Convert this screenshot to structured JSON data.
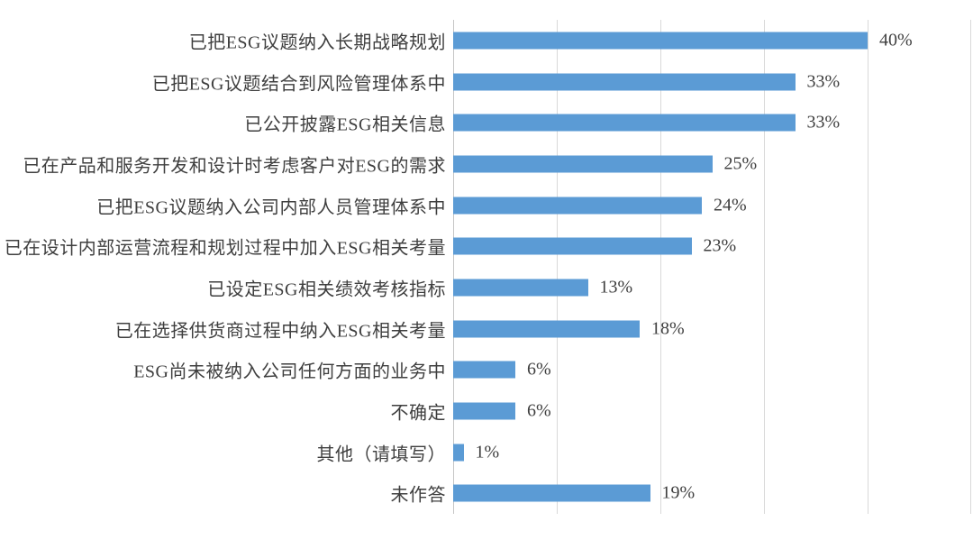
{
  "chart_data": {
    "type": "bar",
    "orientation": "horizontal",
    "title": "",
    "xlabel": "",
    "ylabel": "",
    "categories": [
      "已把ESG议题纳入长期战略规划",
      "已把ESG议题结合到风险管理体系中",
      "已公开披露ESG相关信息",
      "已在产品和服务开发和设计时考虑客户对ESG的需求",
      "已把ESG议题纳入公司内部人员管理体系中",
      "已在设计内部运营流程和规划过程中加入ESG相关考量",
      "已设定ESG相关绩效考核指标",
      "已在选择供货商过程中纳入ESG相关考量",
      "ESG尚未被纳入公司任何方面的业务中",
      "不确定",
      "其他（请填写）",
      "未作答"
    ],
    "values": [
      40,
      33,
      33,
      25,
      24,
      23,
      13,
      18,
      6,
      6,
      1,
      19
    ],
    "value_labels": [
      "40%",
      "33%",
      "33%",
      "25%",
      "24%",
      "23%",
      "13%",
      "18%",
      "6%",
      "6%",
      "1%",
      "19%"
    ],
    "xlim": [
      0,
      50
    ],
    "gridline_values": [
      0,
      10,
      20,
      30,
      40,
      50
    ],
    "grid": true,
    "legend": false,
    "colors": {
      "bar": "#5B9BD5",
      "gridline": "#D9D9D9",
      "axis_line": "#C6C6C6",
      "text": "#3F3F3F",
      "background": "#FFFFFF"
    }
  }
}
